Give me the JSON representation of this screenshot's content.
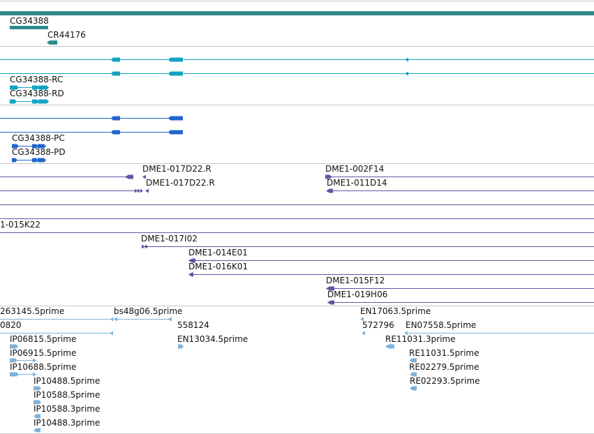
{
  "colors": {
    "gene": "#2e8b8b",
    "transcript": "#12a3c3",
    "protein": "#2266cc",
    "bac": "#6a51a3",
    "est": "#7fb2d8",
    "separator": "#c9c9c9"
  },
  "tracks": {
    "genes": {
      "labels": [
        "CG34388",
        "CR44176"
      ]
    },
    "transcripts": {
      "labels": [
        "CG34388-RC",
        "CG34388-RD"
      ]
    },
    "proteins": {
      "labels": [
        "CG34388-PC",
        "CG34388-PD"
      ]
    },
    "bac_ends": {
      "labels": [
        "DME1-017D22.R",
        "DME1-002F14",
        "DME1-017D22.R",
        "DME1-011D14",
        "1-015K22",
        "DME1-017I02",
        "DME1-014E01",
        "DME1-016K01",
        "DME1-015F12",
        "DME1-019H06"
      ]
    },
    "ests": {
      "labels": [
        "263145.5prime",
        "bs48g06.5prime",
        "EN17063.5prime",
        "0820",
        "558124",
        "572796",
        "EN07558.5prime",
        "IP06815.5prime",
        "EN13034.5prime",
        "RE11031.3prime",
        "IP06915.5prime",
        "RE11031.5prime",
        "IP10688.5prime",
        "RE02279.5prime",
        "IP10488.5prime",
        "RE02293.5prime",
        "IP10588.5prime",
        "IP10588.3prime",
        "IP10488.3prime"
      ]
    }
  }
}
